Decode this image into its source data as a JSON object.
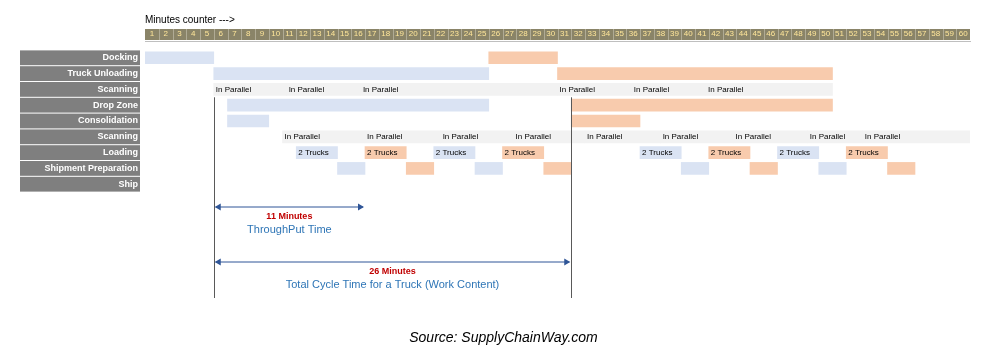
{
  "chart_data": {
    "type": "bar",
    "orientation": "horizontal",
    "grid": false,
    "x_label": "Minutes counter --->",
    "categories": [
      "Docking",
      "Truck Unloading",
      "Scanning",
      "Drop Zone",
      "Consolidation",
      "Scanning",
      "Loading",
      "Shipment Preparation",
      "Ship"
    ],
    "xlim": [
      0,
      60
    ],
    "xticks": [
      {
        "value": 0.5,
        "label": "1"
      },
      {
        "value": 1.5,
        "label": "2"
      },
      {
        "value": 2.5,
        "label": "3"
      },
      {
        "value": 3.5,
        "label": "4"
      },
      {
        "value": 4.5,
        "label": "5"
      },
      {
        "value": 5.5,
        "label": "6"
      },
      {
        "value": 6.5,
        "label": "7"
      },
      {
        "value": 7.5,
        "label": "8"
      },
      {
        "value": 8.5,
        "label": "9"
      },
      {
        "value": 9.5,
        "label": "10"
      },
      {
        "value": 10.5,
        "label": "11"
      },
      {
        "value": 11.5,
        "label": "12"
      },
      {
        "value": 12.5,
        "label": "13"
      },
      {
        "value": 13.5,
        "label": "14"
      },
      {
        "value": 14.5,
        "label": "15"
      },
      {
        "value": 15.5,
        "label": "16"
      },
      {
        "value": 16.5,
        "label": "17"
      },
      {
        "value": 17.5,
        "label": "18"
      },
      {
        "value": 18.5,
        "label": "19"
      },
      {
        "value": 19.5,
        "label": "20"
      },
      {
        "value": 20.5,
        "label": "21"
      },
      {
        "value": 21.5,
        "label": "22"
      },
      {
        "value": 22.5,
        "label": "23"
      },
      {
        "value": 23.5,
        "label": "24"
      },
      {
        "value": 24.5,
        "label": "25"
      },
      {
        "value": 25.5,
        "label": "26"
      },
      {
        "value": 26.5,
        "label": "27"
      },
      {
        "value": 27.5,
        "label": "28"
      },
      {
        "value": 28.5,
        "label": "29"
      },
      {
        "value": 29.5,
        "label": "30"
      },
      {
        "value": 30.5,
        "label": "31"
      },
      {
        "value": 31.5,
        "label": "32"
      },
      {
        "value": 32.5,
        "label": "33"
      },
      {
        "value": 33.5,
        "label": "34"
      },
      {
        "value": 34.5,
        "label": "35"
      },
      {
        "value": 35.5,
        "label": "36"
      },
      {
        "value": 36.5,
        "label": "37"
      },
      {
        "value": 37.5,
        "label": "38"
      },
      {
        "value": 38.5,
        "label": "39"
      },
      {
        "value": 39.5,
        "label": "40"
      },
      {
        "value": 40.5,
        "label": "41"
      },
      {
        "value": 41.5,
        "label": "42"
      },
      {
        "value": 42.5,
        "label": "43"
      },
      {
        "value": 43.5,
        "label": "44"
      },
      {
        "value": 44.5,
        "label": "45"
      },
      {
        "value": 45.5,
        "label": "46"
      },
      {
        "value": 46.5,
        "label": "47"
      },
      {
        "value": 47.5,
        "label": "48"
      },
      {
        "value": 48.5,
        "label": "49"
      },
      {
        "value": 49.5,
        "label": "50"
      },
      {
        "value": 50.5,
        "label": "51"
      },
      {
        "value": 51.5,
        "label": "52"
      },
      {
        "value": 52.5,
        "label": "53"
      },
      {
        "value": 53.5,
        "label": "54"
      },
      {
        "value": 54.5,
        "label": "55"
      },
      {
        "value": 55.5,
        "label": "56"
      },
      {
        "value": 56.5,
        "label": "57"
      },
      {
        "value": 57.5,
        "label": "58"
      },
      {
        "value": 58.5,
        "label": "59"
      },
      {
        "value": 59.5,
        "label": "60"
      }
    ],
    "tasks": [
      {
        "row": 0,
        "start": 0,
        "end": 5,
        "color": "#dae3f3"
      },
      {
        "row": 0,
        "start": 25,
        "end": 30,
        "color": "#f8cbad"
      },
      {
        "row": 1,
        "start": 5,
        "end": 25,
        "color": "#dae3f3"
      },
      {
        "row": 1,
        "start": 30,
        "end": 50,
        "color": "#f8cbad"
      },
      {
        "row": 2,
        "start": 5,
        "end": 10.3,
        "color": "#f2f2f2",
        "label": "In Parallel"
      },
      {
        "row": 2,
        "start": 10.3,
        "end": 15.7,
        "color": "#f2f2f2",
        "label": "In Parallel"
      },
      {
        "row": 2,
        "start": 15.7,
        "end": 30,
        "color": "#f2f2f2",
        "label": "In Parallel"
      },
      {
        "row": 2,
        "start": 30,
        "end": 35.4,
        "color": "#f2f2f2",
        "label": "In Parallel"
      },
      {
        "row": 2,
        "start": 35.4,
        "end": 40.8,
        "color": "#f2f2f2",
        "label": "In Parallel"
      },
      {
        "row": 2,
        "start": 40.8,
        "end": 50,
        "color": "#f2f2f2",
        "label": "In Parallel"
      },
      {
        "row": 3,
        "start": 6,
        "end": 25,
        "color": "#dae3f3"
      },
      {
        "row": 3,
        "start": 31,
        "end": 50,
        "color": "#f8cbad"
      },
      {
        "row": 4,
        "start": 6,
        "end": 9,
        "color": "#dae3f3"
      },
      {
        "row": 4,
        "start": 31,
        "end": 36,
        "color": "#f8cbad"
      },
      {
        "row": 5,
        "start": 10,
        "end": 16,
        "color": "#f2f2f2",
        "label": "In Parallel"
      },
      {
        "row": 5,
        "start": 16,
        "end": 21.5,
        "color": "#f2f2f2",
        "label": "In Parallel"
      },
      {
        "row": 5,
        "start": 21.5,
        "end": 26.8,
        "color": "#f2f2f2",
        "label": "In Parallel"
      },
      {
        "row": 5,
        "start": 26.8,
        "end": 32,
        "color": "#f2f2f2",
        "label": "In Parallel"
      },
      {
        "row": 5,
        "start": 32,
        "end": 37.5,
        "color": "#f2f2f2",
        "label": "In Parallel"
      },
      {
        "row": 5,
        "start": 37.5,
        "end": 42.8,
        "color": "#f2f2f2",
        "label": "In Parallel"
      },
      {
        "row": 5,
        "start": 42.8,
        "end": 48.2,
        "color": "#f2f2f2",
        "label": "In Parallel"
      },
      {
        "row": 5,
        "start": 48.2,
        "end": 52.2,
        "color": "#f2f2f2",
        "label": "In Parallel"
      },
      {
        "row": 5,
        "start": 52.2,
        "end": 60,
        "color": "#f2f2f2",
        "label": "In Parallel"
      },
      {
        "row": 6,
        "start": 11,
        "end": 14,
        "color": "#dae3f3",
        "label": "2 Trucks"
      },
      {
        "row": 6,
        "start": 16,
        "end": 19,
        "color": "#f8cbad",
        "label": "2 Trucks"
      },
      {
        "row": 6,
        "start": 21,
        "end": 24,
        "color": "#dae3f3",
        "label": "2 Trucks"
      },
      {
        "row": 6,
        "start": 26,
        "end": 29,
        "color": "#f8cbad",
        "label": "2 Trucks"
      },
      {
        "row": 6,
        "start": 36,
        "end": 39,
        "color": "#dae3f3",
        "label": "2 Trucks"
      },
      {
        "row": 6,
        "start": 41,
        "end": 44,
        "color": "#f8cbad",
        "label": "2 Trucks"
      },
      {
        "row": 6,
        "start": 46,
        "end": 49,
        "color": "#dae3f3",
        "label": "2 Trucks"
      },
      {
        "row": 6,
        "start": 51,
        "end": 54,
        "color": "#f8cbad",
        "label": "2 Trucks"
      },
      {
        "row": 7,
        "start": 14,
        "end": 16,
        "color": "#dae3f3"
      },
      {
        "row": 7,
        "start": 19,
        "end": 21,
        "color": "#f8cbad"
      },
      {
        "row": 7,
        "start": 24,
        "end": 26,
        "color": "#dae3f3"
      },
      {
        "row": 7,
        "start": 29,
        "end": 31,
        "color": "#f8cbad"
      },
      {
        "row": 7,
        "start": 39,
        "end": 41,
        "color": "#dae3f3"
      },
      {
        "row": 7,
        "start": 44,
        "end": 46,
        "color": "#f8cbad"
      },
      {
        "row": 7,
        "start": 49,
        "end": 51,
        "color": "#dae3f3"
      },
      {
        "row": 7,
        "start": 54,
        "end": 56,
        "color": "#f8cbad"
      }
    ],
    "vertical_lines": [
      5,
      31
    ],
    "spans": [
      {
        "start": 5,
        "end": 16,
        "label": "11 Minutes",
        "text": "ThroughPut Time"
      },
      {
        "start": 5,
        "end": 31,
        "label": "26 Minutes",
        "text": "Total Cycle Time for a Truck (Work Content)"
      }
    ],
    "source": "Source: SupplyChainWay.com"
  }
}
